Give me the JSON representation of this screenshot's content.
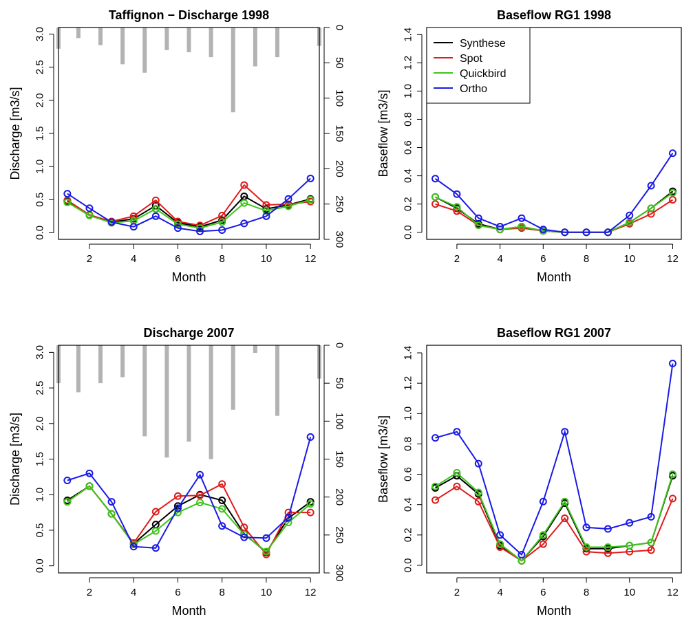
{
  "chart_data": [
    {
      "type": "line",
      "title": "Taffignon − Discharge 1998",
      "xlabel": "Month",
      "ylabel": "Discharge [m3/s]",
      "xlim": [
        0.6,
        12.4
      ],
      "ylim": [
        -0.1,
        3.1
      ],
      "x_ticks": [
        "2",
        "4",
        "6",
        "8",
        "10",
        "12"
      ],
      "y_ticks": [
        "0.0",
        "0.5",
        "1.0",
        "1.5",
        "2.0",
        "2.5",
        "3.0"
      ],
      "x": [
        1,
        2,
        3,
        4,
        5,
        6,
        7,
        8,
        9,
        10,
        11,
        12
      ],
      "series": [
        {
          "name": "Synthese",
          "color": "#000000",
          "values": [
            0.48,
            0.27,
            0.16,
            0.21,
            0.41,
            0.15,
            0.09,
            0.19,
            0.55,
            0.36,
            0.42,
            0.51
          ]
        },
        {
          "name": "Spot",
          "color": "#df1b1b",
          "values": [
            0.49,
            0.27,
            0.17,
            0.25,
            0.49,
            0.17,
            0.11,
            0.26,
            0.72,
            0.42,
            0.43,
            0.47
          ]
        },
        {
          "name": "Quickbird",
          "color": "#3ec41b",
          "values": [
            0.46,
            0.26,
            0.15,
            0.18,
            0.36,
            0.13,
            0.07,
            0.16,
            0.45,
            0.33,
            0.4,
            0.5
          ]
        },
        {
          "name": "Ortho",
          "color": "#1a1ae6",
          "values": [
            0.59,
            0.37,
            0.16,
            0.09,
            0.25,
            0.07,
            0.02,
            0.04,
            0.14,
            0.25,
            0.51,
            0.82
          ]
        }
      ],
      "secondary_axis": {
        "ylim": [
          300,
          0
        ],
        "y_ticks": [
          "0",
          "50",
          "100",
          "150",
          "200",
          "250",
          "300"
        ],
        "precip_x": [
          0.6,
          1.5,
          2.5,
          3.5,
          4.5,
          5.5,
          6.5,
          7.5,
          8.5,
          9.5,
          10.5,
          12.4
        ],
        "precip_values": [
          30,
          15,
          25,
          52,
          64,
          32,
          35,
          42,
          120,
          55,
          42,
          26
        ],
        "bar_color": "#b3b3b3"
      },
      "legend": null
    },
    {
      "type": "line",
      "title": "Baseflow RG1 1998",
      "xlabel": "Month",
      "ylabel": "Baseflow [m3/s]",
      "xlim": [
        0.6,
        12.4
      ],
      "ylim": [
        -0.05,
        1.45
      ],
      "x_ticks": [
        "2",
        "4",
        "6",
        "8",
        "10",
        "12"
      ],
      "y_ticks": [
        "0.0",
        "0.2",
        "0.4",
        "0.6",
        "0.8",
        "1.0",
        "1.2",
        "1.4"
      ],
      "x": [
        1,
        2,
        3,
        4,
        5,
        6,
        7,
        8,
        9,
        10,
        11,
        12
      ],
      "series": [
        {
          "name": "Synthese",
          "color": "#000000",
          "values": [
            0.25,
            0.17,
            0.06,
            0.02,
            0.04,
            0.01,
            0.0,
            0.0,
            0.0,
            0.07,
            0.17,
            0.29
          ]
        },
        {
          "name": "Spot",
          "color": "#df1b1b",
          "values": [
            0.2,
            0.15,
            0.05,
            0.02,
            0.03,
            0.01,
            0.0,
            0.0,
            0.0,
            0.06,
            0.13,
            0.23
          ]
        },
        {
          "name": "Quickbird",
          "color": "#3ec41b",
          "values": [
            0.25,
            0.18,
            0.05,
            0.02,
            0.04,
            0.01,
            0.0,
            0.0,
            0.0,
            0.07,
            0.17,
            0.28
          ]
        },
        {
          "name": "Ortho",
          "color": "#1a1ae6",
          "values": [
            0.38,
            0.27,
            0.1,
            0.04,
            0.1,
            0.02,
            0.0,
            0.0,
            0.0,
            0.12,
            0.33,
            0.56
          ]
        }
      ],
      "legend": {
        "placement": "top-left",
        "entries": [
          "Synthese",
          "Spot",
          "Quickbird",
          "Ortho"
        ]
      }
    },
    {
      "type": "line",
      "title": "Discharge 2007",
      "xlabel": "Month",
      "ylabel": "Discharge [m3/s]",
      "xlim": [
        0.6,
        12.4
      ],
      "ylim": [
        -0.1,
        3.1
      ],
      "x_ticks": [
        "2",
        "4",
        "6",
        "8",
        "10",
        "12"
      ],
      "y_ticks": [
        "0.0",
        "0.5",
        "1.0",
        "1.5",
        "2.0",
        "2.5",
        "3.0"
      ],
      "x": [
        1,
        2,
        3,
        4,
        5,
        6,
        7,
        8,
        9,
        10,
        11,
        12
      ],
      "series": [
        {
          "name": "Synthese",
          "color": "#000000",
          "values": [
            0.92,
            1.12,
            0.73,
            0.31,
            0.58,
            0.84,
            1.0,
            0.92,
            0.45,
            0.19,
            0.67,
            0.9
          ]
        },
        {
          "name": "Spot",
          "color": "#df1b1b",
          "values": [
            0.9,
            1.12,
            0.73,
            0.32,
            0.76,
            0.98,
            0.99,
            1.15,
            0.54,
            0.16,
            0.75,
            0.75
          ]
        },
        {
          "name": "Quickbird",
          "color": "#3ec41b",
          "values": [
            0.9,
            1.12,
            0.73,
            0.3,
            0.49,
            0.75,
            0.89,
            0.8,
            0.44,
            0.2,
            0.61,
            0.87
          ]
        },
        {
          "name": "Ortho",
          "color": "#1a1ae6",
          "values": [
            1.2,
            1.3,
            0.9,
            0.27,
            0.25,
            0.81,
            1.28,
            0.56,
            0.4,
            0.39,
            0.68,
            1.81
          ]
        }
      ],
      "secondary_axis": {
        "ylim": [
          300,
          0
        ],
        "y_ticks": [
          "0",
          "50",
          "100",
          "150",
          "200",
          "250",
          "300"
        ],
        "precip_x": [
          0.6,
          1.5,
          2.5,
          3.5,
          4.5,
          5.5,
          6.5,
          7.5,
          8.5,
          9.5,
          10.5,
          12.4
        ],
        "precip_values": [
          50,
          62,
          50,
          42,
          120,
          148,
          127,
          150,
          85,
          10,
          93,
          44
        ],
        "bar_color": "#b3b3b3"
      },
      "legend": null
    },
    {
      "type": "line",
      "title": "Baseflow RG1 2007",
      "xlabel": "Month",
      "ylabel": "Baseflow [m3/s]",
      "xlim": [
        0.6,
        12.4
      ],
      "ylim": [
        -0.05,
        1.45
      ],
      "x_ticks": [
        "2",
        "4",
        "6",
        "8",
        "10",
        "12"
      ],
      "y_ticks": [
        "0.0",
        "0.2",
        "0.4",
        "0.6",
        "0.8",
        "1.0",
        "1.2",
        "1.4"
      ],
      "x": [
        1,
        2,
        3,
        4,
        5,
        6,
        7,
        8,
        9,
        10,
        11,
        12
      ],
      "series": [
        {
          "name": "Synthese",
          "color": "#000000",
          "values": [
            0.51,
            0.59,
            0.47,
            0.13,
            0.03,
            0.19,
            0.41,
            0.11,
            0.11,
            0.13,
            0.15,
            0.59
          ]
        },
        {
          "name": "Spot",
          "color": "#df1b1b",
          "values": [
            0.43,
            0.52,
            0.42,
            0.12,
            0.03,
            0.14,
            0.31,
            0.09,
            0.08,
            0.09,
            0.1,
            0.44
          ]
        },
        {
          "name": "Quickbird",
          "color": "#3ec41b",
          "values": [
            0.52,
            0.61,
            0.48,
            0.14,
            0.03,
            0.2,
            0.42,
            0.12,
            0.12,
            0.13,
            0.15,
            0.6
          ]
        },
        {
          "name": "Ortho",
          "color": "#1a1ae6",
          "values": [
            0.84,
            0.88,
            0.67,
            0.2,
            0.07,
            0.42,
            0.88,
            0.25,
            0.24,
            0.28,
            0.32,
            1.33
          ]
        }
      ],
      "legend": null
    }
  ]
}
